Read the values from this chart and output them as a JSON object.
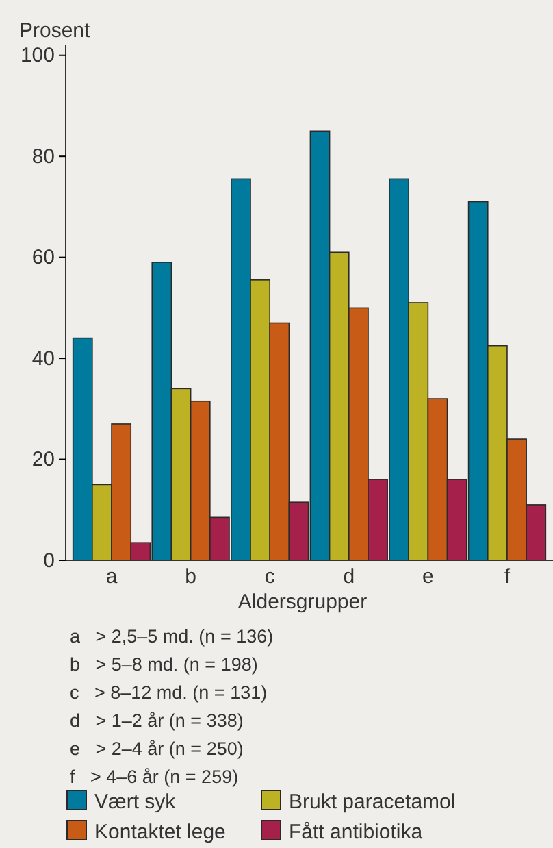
{
  "chart_data": {
    "type": "bar",
    "ylabel": "Prosent",
    "xlabel": "Aldersgrupper",
    "categories": [
      "a",
      "b",
      "c",
      "d",
      "e",
      "f"
    ],
    "series": [
      {
        "name": "Vært syk",
        "color": "#007b9e",
        "values": [
          44,
          59,
          75.5,
          85,
          75.5,
          71
        ]
      },
      {
        "name": "Brukt paracetamol",
        "color": "#bdb223",
        "values": [
          15,
          34,
          55.5,
          61,
          51,
          42.5
        ]
      },
      {
        "name": "Kontaktet lege",
        "color": "#c85b16",
        "values": [
          27,
          31.5,
          47,
          50,
          32,
          24
        ]
      },
      {
        "name": "Fått antibiotika",
        "color": "#a5204b",
        "values": [
          3.5,
          8.5,
          11.5,
          16,
          16,
          11
        ]
      }
    ],
    "ylim": [
      0,
      102
    ],
    "yticks": [
      0,
      20,
      40,
      60,
      80,
      100
    ],
    "grid": false,
    "legend": "bottom",
    "annotations": [
      "a   > 2,5–5 md. (n = 136)",
      "b   > 5–8 md. (n = 198)",
      "c   > 8–12 md. (n = 131)",
      "d   > 1–2 år (n = 338)",
      "e   > 2–4 år (n = 250)",
      "f   > 4–6 år (n = 259)"
    ]
  }
}
